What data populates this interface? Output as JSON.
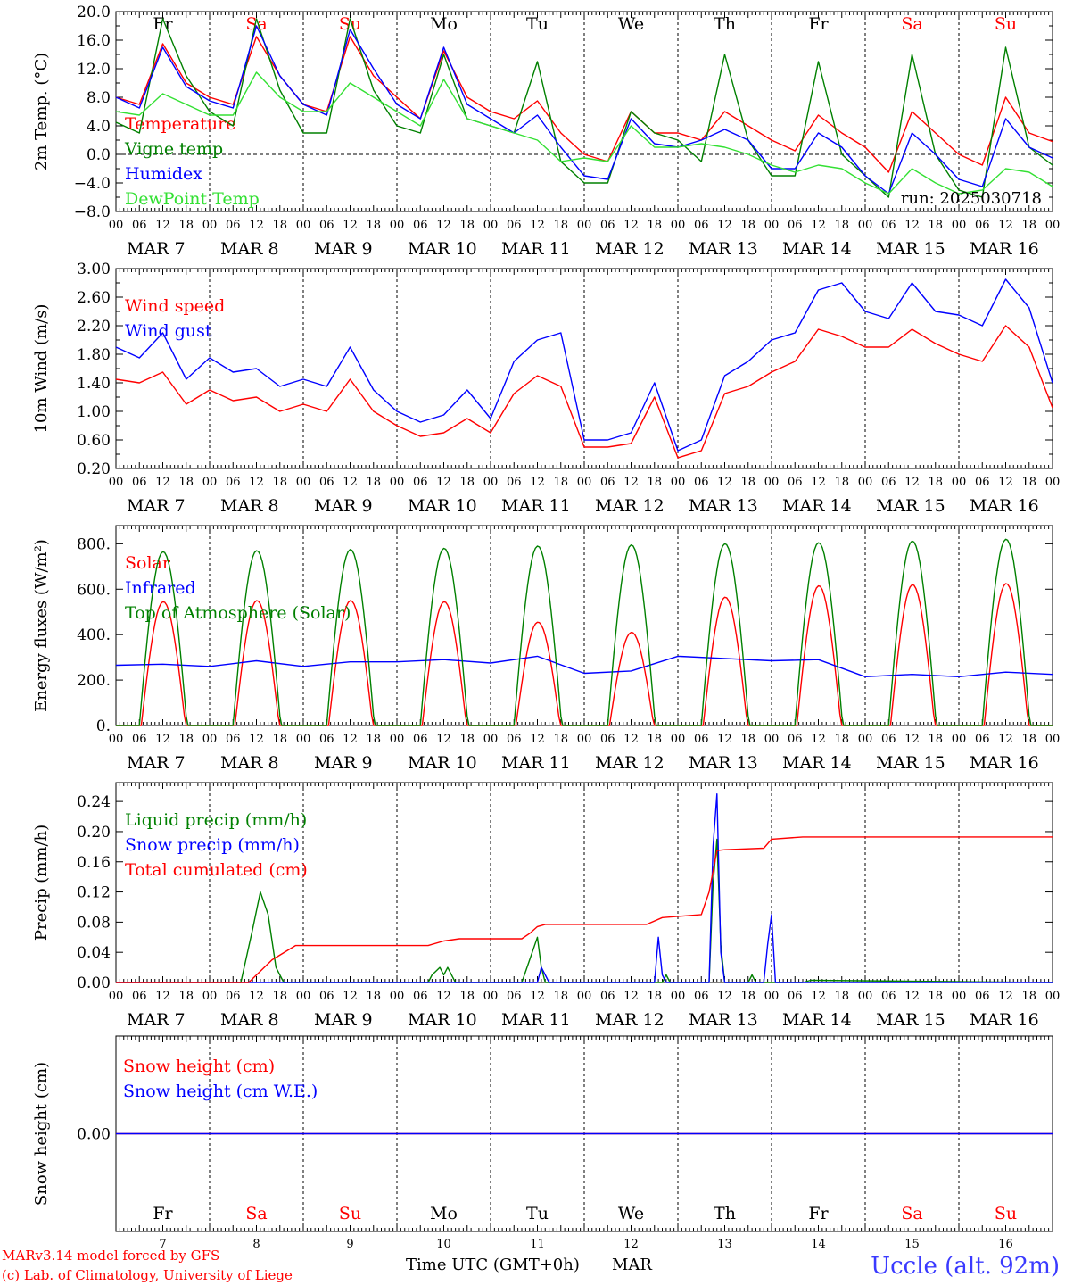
{
  "meta": {
    "run_label": "run: 2025030718",
    "model_line1": "MARv3.14 model forced by GFS",
    "model_line2": "(c) Lab. of Climatology, University of Liege",
    "xaxis_title": "Time UTC (GMT+0h)",
    "xaxis_month": "MAR",
    "station": "Uccle (alt. 92m)"
  },
  "colors": {
    "red": "#ff0000",
    "green": "#008000",
    "blue": "#0000ff",
    "lime": "#33e033",
    "weekend": "#ff0000",
    "weekday": "#000000",
    "station": "#3a3aff"
  },
  "days": {
    "names": [
      "Fr",
      "Sa",
      "Su",
      "Mo",
      "Tu",
      "We",
      "Th",
      "Fr",
      "Sa",
      "Su"
    ],
    "weekend": [
      false,
      true,
      true,
      false,
      false,
      false,
      false,
      false,
      true,
      true
    ],
    "dates": [
      "MAR  7",
      "MAR  8",
      "MAR  9",
      "MAR 10",
      "MAR 11",
      "MAR 12",
      "MAR 13",
      "MAR 14",
      "MAR 15",
      "MAR 16"
    ],
    "numbers": [
      "7",
      "8",
      "9",
      "10",
      "11",
      "12",
      "13",
      "14",
      "15",
      "16"
    ],
    "hour_ticks": [
      "00",
      "06",
      "12",
      "18"
    ],
    "final_hour": "00"
  },
  "chart_data": [
    {
      "type": "line",
      "ylabel": "2m Temp. (°C)",
      "ylim": [
        -8,
        20
      ],
      "yticks": [
        "20.0",
        "16.0",
        "12.0",
        "8.0",
        "4.0",
        "0.0",
        "−4.0",
        "−8.0"
      ],
      "x": [
        0,
        6,
        12,
        18,
        24,
        30,
        36,
        42,
        48,
        54,
        60,
        66,
        72,
        78,
        84,
        90,
        96,
        102,
        108,
        114,
        120,
        126,
        132,
        138,
        144,
        150,
        156,
        162,
        168,
        174,
        180,
        186,
        192,
        198,
        204,
        210,
        216,
        222,
        228,
        234,
        240
      ],
      "x_unit": "hours from 2025-03-07 00 UTC",
      "zero_line": true,
      "series": [
        {
          "name": "Temperature",
          "color": "red",
          "values": [
            8,
            7,
            15.5,
            10,
            8,
            7,
            16.5,
            11,
            7,
            6,
            16.5,
            11,
            8,
            5,
            14.5,
            8,
            6,
            5,
            7.5,
            3,
            0,
            -1,
            6,
            3,
            3,
            2,
            6,
            4,
            2,
            0.5,
            5.5,
            3,
            1,
            -2.5,
            6,
            3,
            0,
            -1.5,
            8,
            3,
            1.8
          ]
        },
        {
          "name": "Vigne temp",
          "color": "green",
          "values": [
            4.5,
            3,
            19,
            11,
            6,
            4,
            19,
            9,
            3,
            3,
            19,
            9,
            4,
            3,
            14,
            5,
            4,
            3,
            13,
            -1,
            -4,
            -4,
            6,
            3,
            2,
            -1,
            14,
            2,
            -3,
            -3,
            13,
            0,
            -3,
            -6,
            14,
            0,
            -5,
            -6,
            15,
            1,
            -1.5
          ]
        },
        {
          "name": "Humidex",
          "color": "blue",
          "values": [
            8,
            6.5,
            15,
            9.5,
            7.5,
            6.5,
            18,
            11,
            7,
            5.5,
            17.5,
            12,
            7,
            5,
            15,
            7,
            5,
            3,
            5.5,
            1,
            -3,
            -3.5,
            5,
            1.5,
            1,
            2,
            3.5,
            2,
            -2,
            -2,
            3,
            1,
            -3,
            -5.5,
            3,
            0,
            -3.5,
            -4.5,
            5,
            1,
            -0.5
          ]
        },
        {
          "name": "DewPoint Temp",
          "color": "lime",
          "values": [
            6,
            5.5,
            8.5,
            7,
            5.5,
            5.5,
            11.5,
            8,
            6,
            6,
            10,
            8,
            6,
            4,
            10.5,
            5,
            4,
            3,
            2,
            -1,
            -0.5,
            -1,
            4,
            1,
            1,
            1.5,
            1,
            0,
            -1.5,
            -2.5,
            -1.5,
            -2,
            -4,
            -5.5,
            -2,
            -4,
            -5.5,
            -5,
            -2,
            -2.5,
            -4.5
          ]
        }
      ]
    },
    {
      "type": "line",
      "ylabel": "10m Wind (m/s)",
      "ylim": [
        0.2,
        3.0
      ],
      "yticks": [
        "3.00",
        "2.60",
        "2.20",
        "1.80",
        "1.40",
        "1.00",
        "0.60",
        "0.20"
      ],
      "x": [
        0,
        6,
        12,
        18,
        24,
        30,
        36,
        42,
        48,
        54,
        60,
        66,
        72,
        78,
        84,
        90,
        96,
        102,
        108,
        114,
        120,
        126,
        132,
        138,
        144,
        150,
        156,
        162,
        168,
        174,
        180,
        186,
        192,
        198,
        204,
        210,
        216,
        222,
        228,
        234,
        240
      ],
      "series": [
        {
          "name": "Wind speed",
          "color": "red",
          "values": [
            1.45,
            1.4,
            1.55,
            1.1,
            1.3,
            1.15,
            1.2,
            1.0,
            1.1,
            1.0,
            1.45,
            1.0,
            0.8,
            0.65,
            0.7,
            0.9,
            0.7,
            1.25,
            1.5,
            1.35,
            0.5,
            0.5,
            0.55,
            1.2,
            0.35,
            0.45,
            1.25,
            1.35,
            1.55,
            1.7,
            2.15,
            2.05,
            1.9,
            1.9,
            2.15,
            1.95,
            1.8,
            1.7,
            2.2,
            1.9,
            1.05
          ]
        },
        {
          "name": "Wind gust",
          "color": "blue",
          "values": [
            1.9,
            1.75,
            2.1,
            1.45,
            1.75,
            1.55,
            1.6,
            1.35,
            1.45,
            1.35,
            1.9,
            1.3,
            1.0,
            0.85,
            0.95,
            1.3,
            0.9,
            1.7,
            2.0,
            2.1,
            0.6,
            0.6,
            0.7,
            1.4,
            0.45,
            0.6,
            1.5,
            1.7,
            2.0,
            2.1,
            2.7,
            2.8,
            2.4,
            2.3,
            2.8,
            2.4,
            2.35,
            2.2,
            2.85,
            2.45,
            1.4
          ]
        }
      ]
    },
    {
      "type": "line",
      "ylabel": "Energy fluxes (W/m²)",
      "ylim": [
        0,
        880
      ],
      "yticks": [
        "800.",
        "600.",
        "400.",
        "200.",
        "0."
      ],
      "ytick_values": [
        800,
        600,
        400,
        200,
        0
      ],
      "series": [
        {
          "name": "Solar",
          "color": "red",
          "peaks": [
            545,
            550,
            550,
            545,
            455,
            410,
            565,
            615,
            620,
            625
          ],
          "sunrise_h": 6.5,
          "sunset_h": 17.8
        },
        {
          "name": "Infrared",
          "color": "blue",
          "x": [
            0,
            12,
            24,
            36,
            48,
            60,
            72,
            84,
            96,
            108,
            120,
            132,
            144,
            156,
            168,
            180,
            192,
            204,
            216,
            228,
            240
          ],
          "values": [
            265,
            270,
            260,
            285,
            260,
            280,
            280,
            290,
            275,
            305,
            230,
            240,
            305,
            295,
            285,
            290,
            215,
            225,
            215,
            235,
            225
          ]
        },
        {
          "name": "Top of Atmosphere (Solar)",
          "color": "green",
          "peaks": [
            765,
            770,
            775,
            780,
            790,
            795,
            800,
            805,
            812,
            820
          ],
          "sunrise_h": 6.0,
          "sunset_h": 18.2
        }
      ]
    },
    {
      "type": "line",
      "ylabel": "Precip (mm/h)",
      "ylim": [
        0,
        0.265
      ],
      "yticks": [
        "0.24",
        "0.20",
        "0.16",
        "0.12",
        "0.08",
        "0.04",
        "0.00"
      ],
      "ytick_values": [
        0.24,
        0.2,
        0.16,
        0.12,
        0.08,
        0.04,
        0.0
      ],
      "series": [
        {
          "name": "Liquid precip (mm/h)",
          "color": "green",
          "x": [
            0,
            32,
            35,
            37,
            39,
            41,
            43,
            48,
            80,
            81,
            83,
            84,
            85,
            87,
            104,
            106,
            108,
            109,
            110,
            140,
            141,
            142,
            152,
            153,
            154,
            155,
            156,
            162,
            163,
            164,
            176,
            178,
            240
          ],
          "values": [
            0,
            0,
            0.07,
            0.12,
            0.09,
            0.02,
            0,
            0,
            0,
            0.01,
            0.02,
            0.01,
            0.02,
            0,
            0,
            0.03,
            0.06,
            0.02,
            0,
            0,
            0.01,
            0,
            0,
            0.13,
            0.19,
            0.05,
            0,
            0,
            0.01,
            0,
            0,
            0.003,
            0
          ]
        },
        {
          "name": "Snow precip (mm/h)",
          "color": "blue",
          "x": [
            0,
            108,
            109,
            110,
            111,
            138,
            139,
            140,
            141,
            152,
            153,
            154,
            155,
            156,
            166,
            167,
            168,
            169,
            240
          ],
          "values": [
            0,
            0,
            0.02,
            0.01,
            0,
            0,
            0.06,
            0.01,
            0,
            0,
            0.18,
            0.25,
            0.04,
            0,
            0,
            0.05,
            0.09,
            0,
            0
          ]
        },
        {
          "name": "Total cumulated (cm)",
          "color": "red",
          "x": [
            0,
            34,
            40,
            46,
            80,
            84,
            88,
            104,
            106,
            108,
            110,
            136,
            140,
            150,
            152,
            154,
            156,
            166,
            168,
            176,
            240
          ],
          "values": [
            0,
            0,
            0.03,
            0.049,
            0.049,
            0.055,
            0.058,
            0.058,
            0.065,
            0.074,
            0.077,
            0.077,
            0.086,
            0.09,
            0.12,
            0.175,
            0.176,
            0.178,
            0.19,
            0.193,
            0.193
          ]
        }
      ]
    },
    {
      "type": "line",
      "ylabel": "Snow height (cm)",
      "ylim": [
        -1,
        1
      ],
      "yticks": [
        "0.00"
      ],
      "ytick_values": [
        0
      ],
      "series": [
        {
          "name": "Snow height (cm)",
          "color": "red",
          "x": [
            0,
            240
          ],
          "values": [
            0,
            0
          ]
        },
        {
          "name": "Snow height (cm W.E.)",
          "color": "blue",
          "x": [
            0,
            240
          ],
          "values": [
            0,
            0
          ]
        }
      ]
    }
  ]
}
